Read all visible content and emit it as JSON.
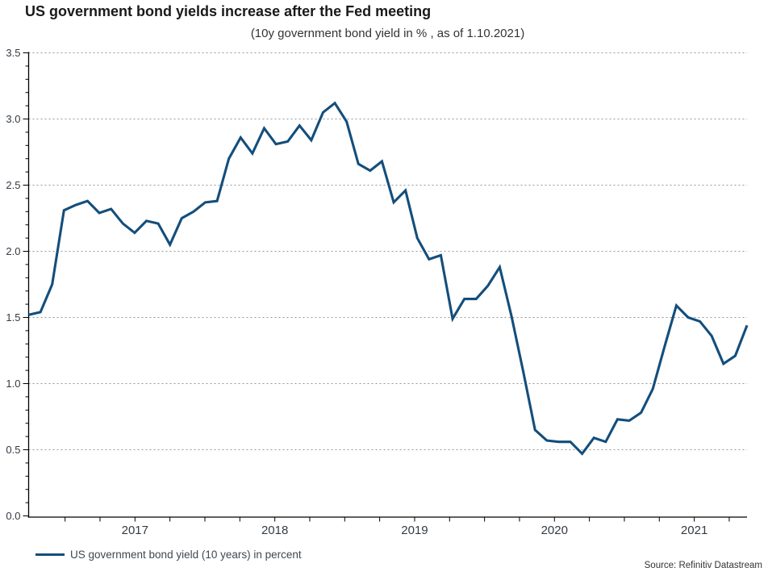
{
  "title": "US government bond yields increase after the Fed meeting",
  "subtitle": "(10y government bond yield in % , as of 1.10.2021)",
  "source": "Source: Refinitiv Datastream",
  "legend": {
    "label": "US government bond yield (10 years) in percent"
  },
  "colors": {
    "line": "#144e7b",
    "grid": "#979797",
    "axis": "#000000",
    "tick_text": "#333b44",
    "title_text": "#1a1a1a",
    "legend_text": "#3d4853"
  },
  "chart_data": {
    "type": "line",
    "title": "US government bond yields increase after the Fed meeting",
    "subtitle": "(10y government bond yield in % , as of 1.10.2021)",
    "xlabel": "",
    "ylabel": "10y government bond yield in %",
    "ylim": [
      0.0,
      3.5
    ],
    "y_tick_step": 0.5,
    "y_minor_tick_step": 0.1,
    "grid": "horizontal-dashed",
    "legend_position": "bottom-left",
    "x_interval": "monthly",
    "x_tick_labels": [
      "2017",
      "2018",
      "2019",
      "2020",
      "2021"
    ],
    "y_tick_labels": [
      "0.0",
      "0.5",
      "1.0",
      "1.5",
      "2.0",
      "2.5",
      "3.0",
      "3.5"
    ],
    "x": [
      "2016-09",
      "2016-10",
      "2016-11",
      "2016-12",
      "2017-01",
      "2017-02",
      "2017-03",
      "2017-04",
      "2017-05",
      "2017-06",
      "2017-07",
      "2017-08",
      "2017-09",
      "2017-10",
      "2017-11",
      "2017-12",
      "2018-01",
      "2018-02",
      "2018-03",
      "2018-04",
      "2018-05",
      "2018-06",
      "2018-07",
      "2018-08",
      "2018-09",
      "2018-10",
      "2018-11",
      "2018-12",
      "2019-01",
      "2019-02",
      "2019-03",
      "2019-04",
      "2019-05",
      "2019-06",
      "2019-07",
      "2019-08",
      "2019-09",
      "2019-10",
      "2019-11",
      "2019-12",
      "2020-01",
      "2020-02",
      "2020-03",
      "2020-04",
      "2020-05",
      "2020-06",
      "2020-07",
      "2020-08",
      "2020-09",
      "2020-10",
      "2020-11",
      "2020-12",
      "2021-01",
      "2021-02",
      "2021-03",
      "2021-04",
      "2021-05",
      "2021-06",
      "2021-07",
      "2021-08",
      "2021-09",
      "2021-10"
    ],
    "series": [
      {
        "name": "US government bond yield (10 years) in percent",
        "values": [
          1.52,
          1.54,
          1.75,
          2.31,
          2.35,
          2.38,
          2.29,
          2.32,
          2.21,
          2.14,
          2.23,
          2.21,
          2.05,
          2.25,
          2.3,
          2.37,
          2.38,
          2.7,
          2.86,
          2.74,
          2.93,
          2.81,
          2.83,
          2.95,
          2.84,
          3.05,
          3.12,
          2.98,
          2.66,
          2.61,
          2.68,
          2.37,
          2.46,
          2.1,
          1.94,
          1.97,
          1.49,
          1.64,
          1.64,
          1.74,
          1.88,
          1.51,
          1.09,
          0.65,
          0.57,
          0.56,
          0.56,
          0.47,
          0.59,
          0.56,
          0.73,
          0.72,
          0.78,
          0.96,
          1.28,
          1.59,
          1.5,
          1.47,
          1.36,
          1.15,
          1.21,
          1.44
        ]
      }
    ]
  }
}
